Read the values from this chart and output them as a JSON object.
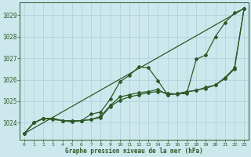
{
  "title": "Graphe pression niveau de la mer (hPa)",
  "bg_color": "#cce8ed",
  "line_color": "#2d5a27",
  "grid_color": "#aacfd8",
  "xlim": [
    -0.5,
    23.5
  ],
  "ylim": [
    1023.2,
    1029.6
  ],
  "xticks": [
    0,
    1,
    2,
    3,
    4,
    5,
    6,
    7,
    8,
    9,
    10,
    11,
    12,
    13,
    14,
    15,
    16,
    17,
    18,
    19,
    20,
    21,
    22,
    23
  ],
  "yticks": [
    1024,
    1025,
    1026,
    1027,
    1028,
    1029
  ],
  "series1_straight": {
    "x": [
      0,
      23
    ],
    "y": [
      1023.5,
      1029.3
    ]
  },
  "series2": {
    "x": [
      0,
      1,
      2,
      3,
      4,
      5,
      6,
      7,
      8,
      9,
      10,
      11,
      12,
      13,
      14,
      15,
      16,
      17,
      18,
      19,
      20,
      21,
      22,
      23
    ],
    "y": [
      1023.5,
      1024.0,
      1024.2,
      1024.2,
      1024.1,
      1024.1,
      1024.1,
      1024.4,
      1024.5,
      1025.1,
      1025.9,
      1026.2,
      1026.6,
      1026.55,
      1025.95,
      1025.3,
      1025.35,
      1025.35,
      1026.95,
      1027.15,
      1028.0,
      1028.65,
      1029.1,
      1029.3
    ]
  },
  "series3": {
    "x": [
      0,
      1,
      2,
      3,
      4,
      5,
      6,
      7,
      8,
      9,
      10,
      11,
      12,
      13,
      14,
      15,
      16,
      17,
      18,
      19,
      20,
      21,
      22,
      23
    ],
    "y": [
      1023.5,
      1024.0,
      1024.2,
      1024.2,
      1024.1,
      1024.1,
      1024.1,
      1024.15,
      1024.3,
      1024.8,
      1025.2,
      1025.3,
      1025.4,
      1025.45,
      1025.55,
      1025.3,
      1025.35,
      1025.45,
      1025.5,
      1025.65,
      1025.75,
      1026.1,
      1026.55,
      1029.3
    ]
  },
  "series4_diagonal": {
    "x": [
      0,
      1,
      2,
      3,
      4,
      5,
      6,
      7,
      8,
      9,
      10,
      11,
      12,
      13,
      14,
      15,
      16,
      17,
      18,
      19,
      20,
      21,
      22,
      23
    ],
    "y": [
      1023.5,
      1024.0,
      1024.2,
      1024.15,
      1024.1,
      1024.05,
      1024.1,
      1024.15,
      1024.25,
      1024.75,
      1025.05,
      1025.2,
      1025.3,
      1025.4,
      1025.45,
      1025.38,
      1025.32,
      1025.42,
      1025.52,
      1025.6,
      1025.75,
      1026.05,
      1026.5,
      1029.3
    ]
  }
}
